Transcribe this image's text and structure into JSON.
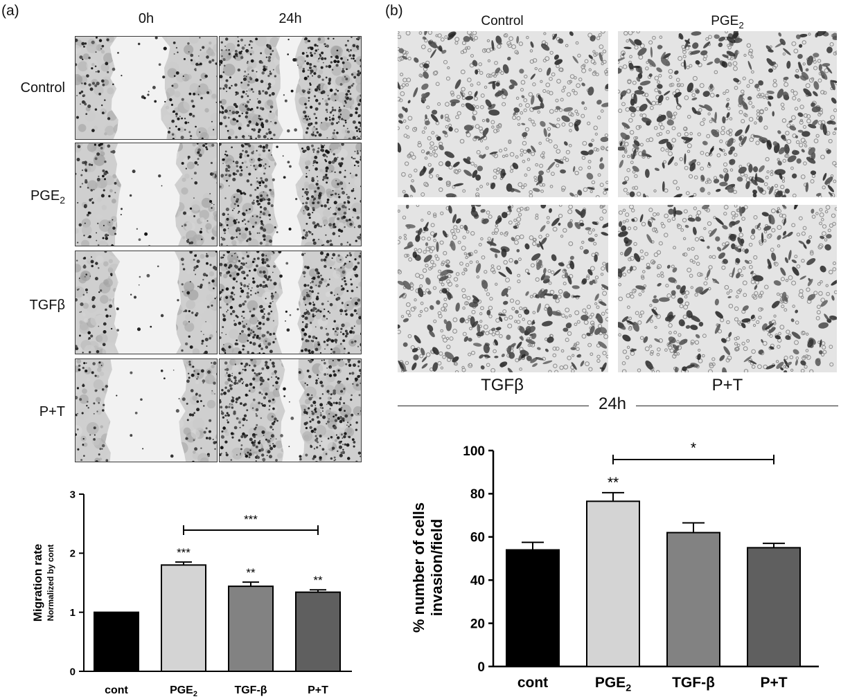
{
  "panel_a": {
    "letter": "(a)",
    "col_headers": [
      "0h",
      "24h"
    ],
    "row_labels": [
      {
        "main": "Control",
        "sub": ""
      },
      {
        "main": "PGE",
        "sub": "2"
      },
      {
        "main": "TGFβ",
        "sub": ""
      },
      {
        "main": "P+T",
        "sub": ""
      }
    ]
  },
  "panel_b": {
    "letter": "(b)",
    "top_captions": [
      {
        "main": "Control",
        "sub": ""
      },
      {
        "main": "PGE",
        "sub": "2"
      }
    ],
    "bottom_captions": [
      "TGFβ",
      "P+T"
    ],
    "time_label": "24h"
  },
  "chart_data": [
    {
      "type": "bar",
      "categories": [
        "cont",
        "PGE2",
        "TGF-β",
        "P+T"
      ],
      "category_labels": [
        {
          "main": "cont",
          "sub": ""
        },
        {
          "main": "PGE",
          "sub": "2"
        },
        {
          "main": "TGF-β",
          "sub": ""
        },
        {
          "main": "P+T",
          "sub": ""
        }
      ],
      "values": [
        1.0,
        1.8,
        1.44,
        1.34
      ],
      "errors": [
        0.0,
        0.05,
        0.07,
        0.04
      ],
      "significance": [
        "",
        "***",
        "**",
        "**"
      ],
      "bracket": {
        "from": 1,
        "to": 3,
        "label": "***"
      },
      "ylabel": "Migration rate",
      "ylabel_sub": "Normalized by cont",
      "ylim": [
        0,
        3
      ],
      "yticks": [
        0,
        1,
        2,
        3
      ],
      "bar_colors": [
        "#000000",
        "#d4d4d4",
        "#828282",
        "#5f5f5f"
      ]
    },
    {
      "type": "bar",
      "categories": [
        "cont",
        "PGE2",
        "TGF-β",
        "P+T"
      ],
      "category_labels": [
        {
          "main": "cont",
          "sub": ""
        },
        {
          "main": "PGE",
          "sub": "2"
        },
        {
          "main": "TGF-β",
          "sub": ""
        },
        {
          "main": "P+T",
          "sub": ""
        }
      ],
      "values": [
        54,
        76.5,
        62,
        55
      ],
      "errors": [
        3.5,
        4,
        4.5,
        2
      ],
      "significance": [
        "",
        "**",
        "",
        ""
      ],
      "bracket": {
        "from": 1,
        "to": 3,
        "label": "*"
      },
      "ylabel": "% number of cells",
      "ylabel2": "invasion/field",
      "ylim": [
        0,
        100
      ],
      "yticks": [
        0,
        20,
        40,
        60,
        80,
        100
      ],
      "bar_colors": [
        "#000000",
        "#d4d4d4",
        "#828282",
        "#5f5f5f"
      ]
    }
  ]
}
